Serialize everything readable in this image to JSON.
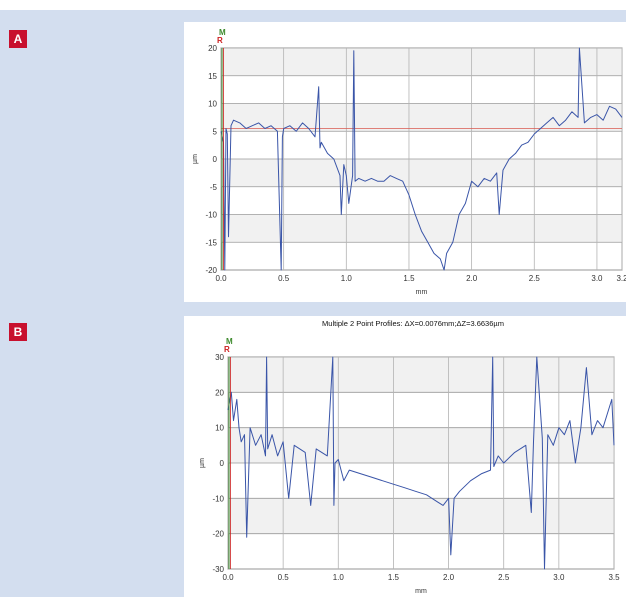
{
  "panels": [
    {
      "label": "A"
    },
    {
      "label": "B"
    }
  ],
  "chart_data": [
    {
      "type": "line",
      "title": "",
      "xlabel": "mm",
      "ylabel": "µm",
      "xlim": [
        0.0,
        3.2
      ],
      "ylim": [
        -20,
        20
      ],
      "xticks": [
        "0.0",
        "0.5",
        "1.0",
        "1.5",
        "2.0",
        "2.5",
        "3.0",
        "3.2"
      ],
      "yticks": [
        "20",
        "15",
        "10",
        "5",
        "0",
        "-5",
        "-10",
        "-15",
        "-20"
      ],
      "marker_labels": [
        "M",
        "R"
      ],
      "colors": {
        "line": "#3a55a8",
        "reference": "#d9584f",
        "marker_m": "#3d8a2d",
        "marker_r": "#cc1f1f"
      },
      "reference_y": 5.5,
      "series": [
        {
          "x": [
            0.0,
            0.02,
            0.03,
            0.04,
            0.05,
            0.06,
            0.08,
            0.1,
            0.15,
            0.2,
            0.25,
            0.3,
            0.35,
            0.4,
            0.45,
            0.48,
            0.49,
            0.5,
            0.55,
            0.6,
            0.65,
            0.7,
            0.75,
            0.78,
            0.79,
            0.8,
            0.85,
            0.9,
            0.95,
            0.96,
            0.98,
            1.0,
            1.02,
            1.05,
            1.06,
            1.07,
            1.1,
            1.15,
            1.2,
            1.25,
            1.3,
            1.35,
            1.4,
            1.45,
            1.5,
            1.55,
            1.6,
            1.65,
            1.7,
            1.75,
            1.78,
            1.8,
            1.85,
            1.9,
            1.95,
            2.0,
            2.05,
            2.1,
            2.15,
            2.2,
            2.22,
            2.25,
            2.3,
            2.35,
            2.4,
            2.45,
            2.5,
            2.55,
            2.6,
            2.65,
            2.7,
            2.75,
            2.8,
            2.85,
            2.86,
            2.9,
            2.95,
            3.0,
            3.05,
            3.1,
            3.15,
            3.2
          ],
          "y": [
            5.0,
            3.0,
            -20.0,
            5.5,
            4.5,
            -14.0,
            6.0,
            7.0,
            6.5,
            5.5,
            6.0,
            6.5,
            5.5,
            6.0,
            5.0,
            -20.0,
            4.0,
            5.5,
            6.0,
            5.0,
            6.5,
            5.5,
            4.0,
            13.0,
            2.0,
            3.0,
            1.0,
            0.0,
            -3.0,
            -10.0,
            -1.0,
            -3.0,
            -8.0,
            -3.0,
            19.5,
            -4.0,
            -3.5,
            -4.0,
            -3.5,
            -4.0,
            -4.0,
            -3.0,
            -3.5,
            -4.0,
            -6.5,
            -10.0,
            -13.0,
            -15.0,
            -17.0,
            -18.0,
            -20.0,
            -17.0,
            -15.0,
            -10.0,
            -8.0,
            -4.0,
            -5.0,
            -3.5,
            -4.0,
            -2.5,
            -10.0,
            -2.0,
            0.0,
            1.0,
            2.5,
            3.0,
            4.5,
            5.5,
            6.5,
            7.5,
            6.0,
            7.0,
            8.5,
            7.5,
            20.0,
            6.5,
            7.5,
            8.0,
            7.0,
            9.5,
            9.0,
            7.5
          ]
        }
      ]
    },
    {
      "type": "line",
      "title": "Multiple 2 Point Profiles: ΔX=0.0076mm;ΔZ=3.6636µm",
      "xlabel": "mm",
      "ylabel": "µm",
      "xlim": [
        0.0,
        3.5
      ],
      "ylim": [
        -30,
        30
      ],
      "xticks": [
        "0.0",
        "0.5",
        "1.0",
        "1.5",
        "2.0",
        "2.5",
        "3.0",
        "3.5"
      ],
      "yticks": [
        "30",
        "20",
        "10",
        "0",
        "-10",
        "-20",
        "-30"
      ],
      "marker_labels": [
        "M",
        "R"
      ],
      "colors": {
        "line": "#3a55a8",
        "marker_m": "#3d8a2d",
        "marker_r": "#cc1f1f"
      },
      "series": [
        {
          "x": [
            0.0,
            0.03,
            0.05,
            0.08,
            0.1,
            0.12,
            0.15,
            0.17,
            0.2,
            0.25,
            0.3,
            0.34,
            0.35,
            0.36,
            0.4,
            0.45,
            0.5,
            0.55,
            0.6,
            0.7,
            0.75,
            0.8,
            0.9,
            0.95,
            0.96,
            0.97,
            1.0,
            1.05,
            1.1,
            1.2,
            1.3,
            1.4,
            1.5,
            1.6,
            1.7,
            1.8,
            1.9,
            1.95,
            2.0,
            2.02,
            2.05,
            2.1,
            2.2,
            2.3,
            2.38,
            2.4,
            2.41,
            2.45,
            2.5,
            2.6,
            2.7,
            2.75,
            2.77,
            2.8,
            2.85,
            2.87,
            2.9,
            2.95,
            3.0,
            3.05,
            3.1,
            3.15,
            3.2,
            3.25,
            3.3,
            3.35,
            3.4,
            3.45,
            3.48,
            3.5
          ],
          "y": [
            15.0,
            20.0,
            12.0,
            18.0,
            10.0,
            6.0,
            8.0,
            -21.0,
            10.0,
            5.0,
            8.0,
            2.0,
            30.0,
            4.0,
            8.0,
            2.0,
            6.0,
            -10.0,
            5.0,
            3.0,
            -12.0,
            4.0,
            2.0,
            30.0,
            -12.0,
            0.0,
            1.0,
            -5.0,
            -2.0,
            -3.0,
            -4.0,
            -5.0,
            -6.0,
            -7.0,
            -8.0,
            -9.0,
            -11.0,
            -12.0,
            -10.0,
            -26.0,
            -10.0,
            -8.0,
            -5.0,
            -3.0,
            -2.0,
            30.0,
            -1.0,
            2.0,
            0.0,
            3.0,
            5.0,
            -14.0,
            6.0,
            30.0,
            7.0,
            -30.0,
            8.0,
            5.0,
            10.0,
            8.0,
            12.0,
            0.0,
            10.0,
            27.0,
            8.0,
            12.0,
            10.0,
            15.0,
            18.0,
            5.0
          ]
        }
      ]
    }
  ]
}
